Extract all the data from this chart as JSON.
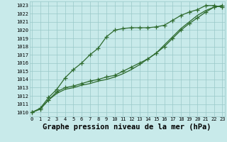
{
  "title": "Graphe pression niveau de la mer (hPa)",
  "x": [
    0,
    1,
    2,
    3,
    4,
    5,
    6,
    7,
    8,
    9,
    10,
    11,
    12,
    13,
    14,
    15,
    16,
    17,
    18,
    19,
    20,
    21,
    22,
    23
  ],
  "line1_marked": [
    1010.0,
    1010.5,
    1011.8,
    1012.8,
    1014.2,
    1015.2,
    1016.0,
    1017.0,
    1017.8,
    1019.2,
    1020.0,
    1020.2,
    1020.3,
    1020.3,
    1020.3,
    1020.4,
    1020.6,
    1021.2,
    1021.8,
    1022.2,
    1022.5,
    1023.0,
    1023.0,
    1022.8
  ],
  "line2_marked": [
    1010.0,
    1010.4,
    1011.5,
    1012.5,
    1013.0,
    1013.2,
    1013.5,
    1013.8,
    1014.0,
    1014.3,
    1014.5,
    1015.0,
    1015.5,
    1016.0,
    1016.5,
    1017.2,
    1018.0,
    1019.0,
    1020.0,
    1020.8,
    1021.5,
    1022.2,
    1022.8,
    1023.0
  ],
  "line3_plain": [
    1010.0,
    1010.4,
    1011.5,
    1012.3,
    1012.8,
    1013.0,
    1013.3,
    1013.5,
    1013.8,
    1014.0,
    1014.3,
    1014.7,
    1015.2,
    1015.8,
    1016.5,
    1017.2,
    1018.2,
    1019.2,
    1020.2,
    1021.0,
    1021.8,
    1022.4,
    1022.8,
    1023.0
  ],
  "ylim": [
    1009.5,
    1023.5
  ],
  "xlim": [
    -0.3,
    23.3
  ],
  "yticks": [
    1010,
    1011,
    1012,
    1013,
    1014,
    1015,
    1016,
    1017,
    1018,
    1019,
    1020,
    1021,
    1022,
    1023
  ],
  "xticks": [
    0,
    1,
    2,
    3,
    4,
    5,
    6,
    7,
    8,
    9,
    10,
    11,
    12,
    13,
    14,
    15,
    16,
    17,
    18,
    19,
    20,
    21,
    22,
    23
  ],
  "line_color": "#2d6a2d",
  "bg_color": "#c8eaea",
  "grid_color": "#99c8c8",
  "marker": "+",
  "marker_size": 4,
  "linewidth": 0.9,
  "title_fontsize": 7.5
}
